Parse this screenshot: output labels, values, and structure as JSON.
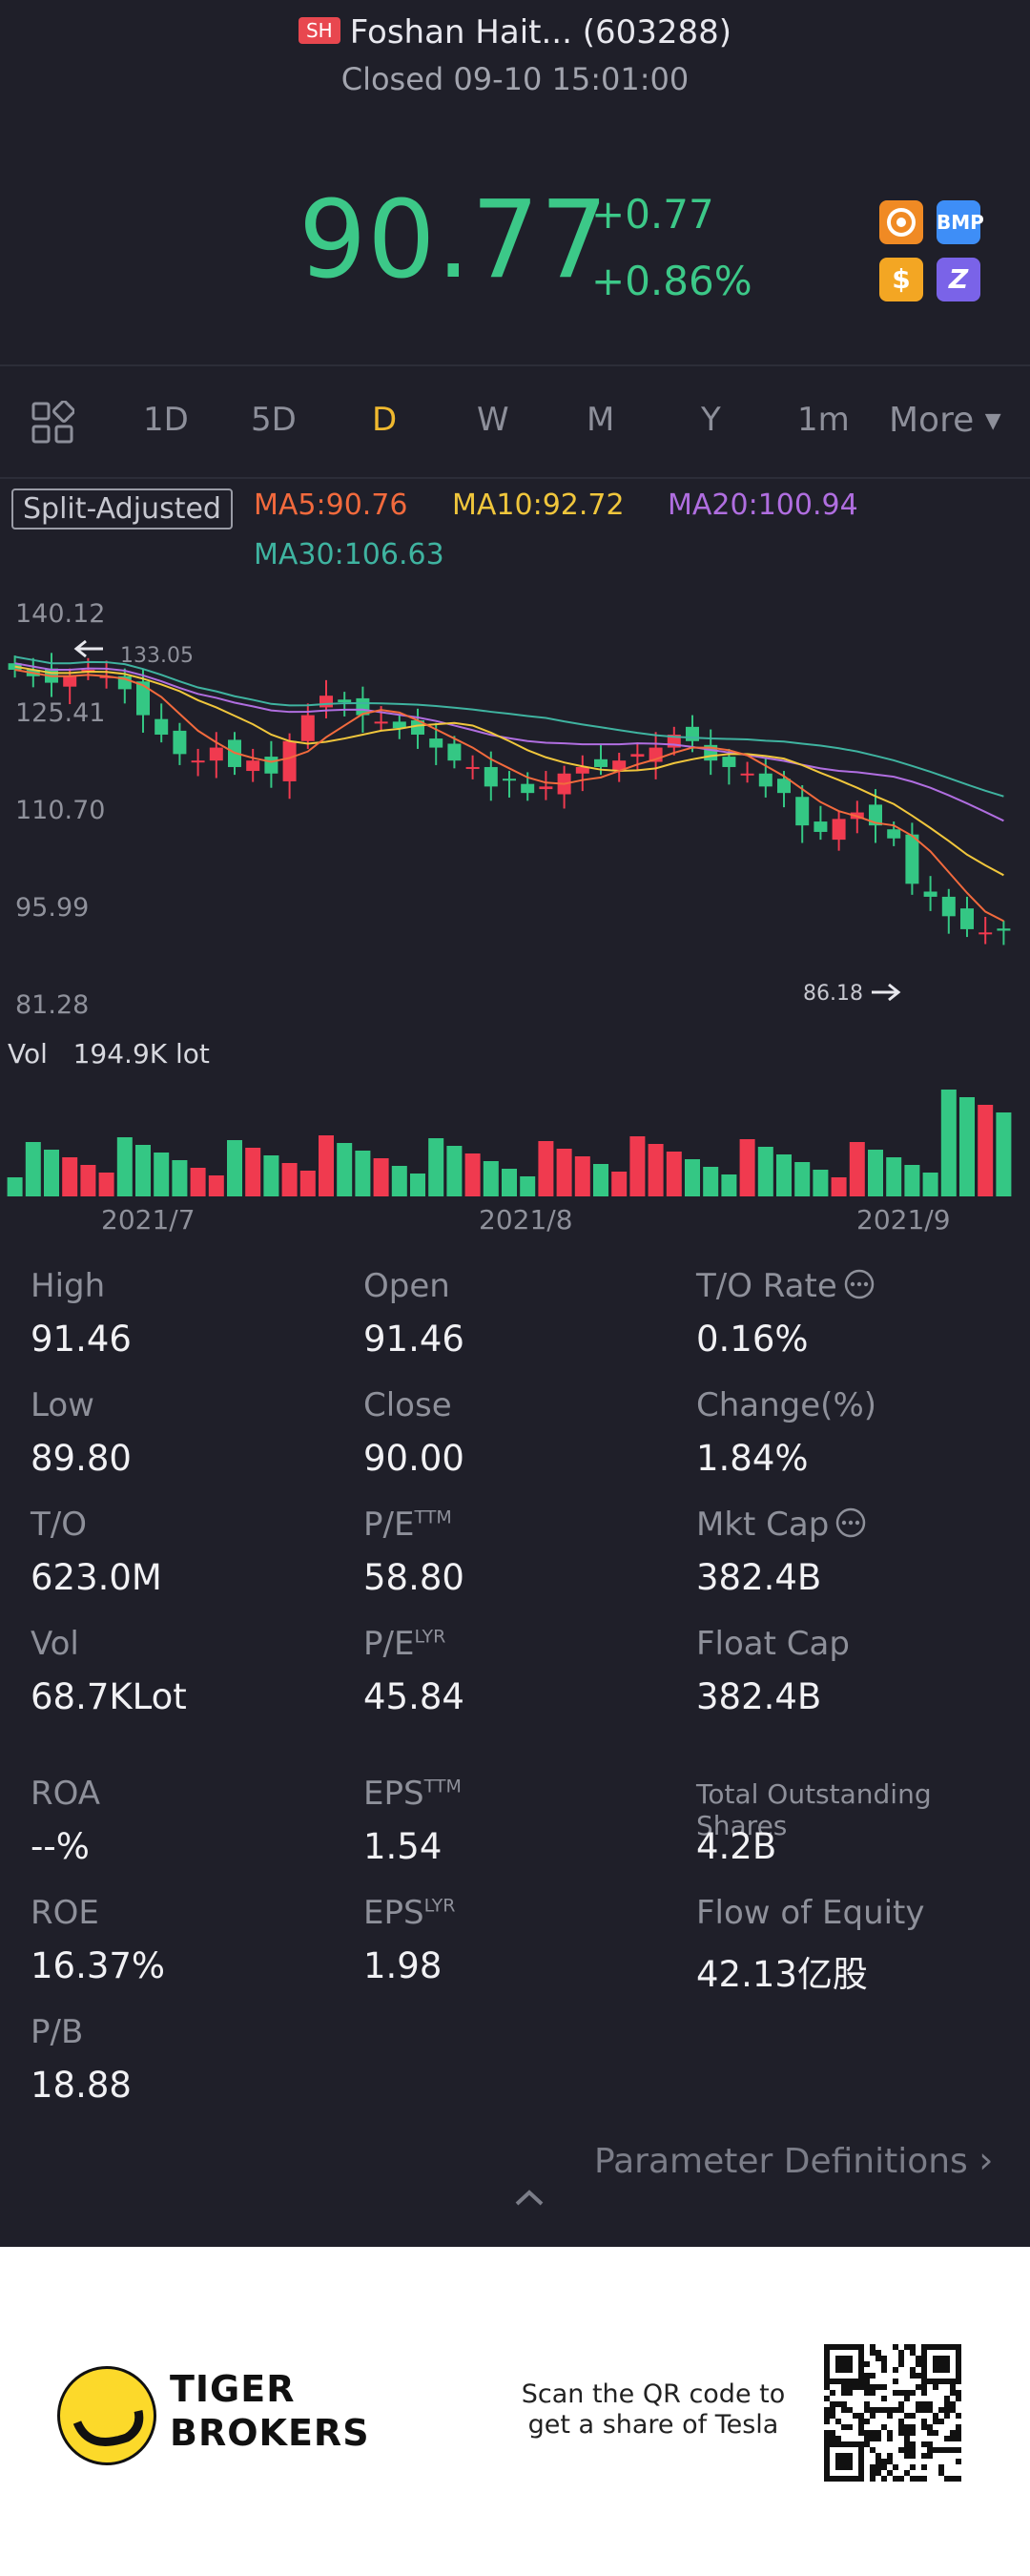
{
  "header": {
    "exchange_badge": "SH",
    "name": "Foshan Hait... (603288)",
    "status": "Closed 09-10 15:01:00",
    "price": "90.77",
    "change": "+0.77",
    "change_pct": "+0.86%",
    "badges": [
      {
        "icon": "mooomoo-icon",
        "color": "#f08a24"
      },
      {
        "label": "BMP",
        "color": "#3e8ef7"
      },
      {
        "label": "$",
        "color": "#f3a623"
      },
      {
        "label": "Z",
        "color": "#7a63e8"
      }
    ]
  },
  "tabs": {
    "items": [
      "1D",
      "5D",
      "D",
      "W",
      "M",
      "Y",
      "1m"
    ],
    "active": "D",
    "more": "More"
  },
  "indicators": {
    "adjust": "Split-Adjusted",
    "ma5": "MA5:90.76",
    "ma10": "MA10:92.72",
    "ma20": "MA20:100.94",
    "ma30": "MA30:106.63",
    "colors": {
      "ma5": "#f26a3d",
      "ma10": "#f0c63c",
      "ma20": "#b06ee0",
      "ma30": "#3fb3a0",
      "up": "#f03a4f",
      "down": "#34c784"
    }
  },
  "chart_data": {
    "type": "candlestick",
    "y_ticks": [
      "140.12",
      "125.41",
      "110.70",
      "95.99",
      "81.28"
    ],
    "high_label": "133.05",
    "low_label": "86.18",
    "x_ticks": [
      "2021/7",
      "2021/8",
      "2021/9"
    ],
    "volume_label": "Vol",
    "volume_value": "194.9K lot",
    "last_close": 90.77
  },
  "stats": [
    {
      "label": "High",
      "value": "91.46"
    },
    {
      "label": "Open",
      "value": "91.46"
    },
    {
      "label": "T/O Rate",
      "value": "0.16%"
    },
    {
      "label": "Low",
      "value": "89.80"
    },
    {
      "label": "Close",
      "value": "90.00"
    },
    {
      "label": "Change(%)",
      "value": "1.84%"
    },
    {
      "label": "T/O",
      "value": "623.0M"
    },
    {
      "label": "P/E",
      "sup": "TTM",
      "value": "58.80"
    },
    {
      "label": "Mkt Cap",
      "value": "382.4B"
    },
    {
      "label": "Vol",
      "value": "68.7KLot"
    },
    {
      "label": "P/E",
      "sup": "LYR",
      "value": "45.84"
    },
    {
      "label": "Float Cap",
      "value": "382.4B"
    },
    {
      "label": "ROA",
      "value": "--%"
    },
    {
      "label": "EPS",
      "sup": "TTM",
      "value": "1.54"
    },
    {
      "label": "Total Outstanding Shares",
      "value": "4.2B"
    },
    {
      "label": "ROE",
      "value": "16.37%"
    },
    {
      "label": "EPS",
      "sup": "LYR",
      "value": "1.98"
    },
    {
      "label": "Flow of Equity",
      "value": "42.13亿股"
    },
    {
      "label": "P/B",
      "value": "18.88"
    }
  ],
  "param_link": "Parameter Definitions",
  "footer": {
    "brand_line1": "TIGER",
    "brand_line2": "BROKERS",
    "scan_line1": "Scan the QR code to",
    "scan_line2": "get a share of Tesla"
  }
}
